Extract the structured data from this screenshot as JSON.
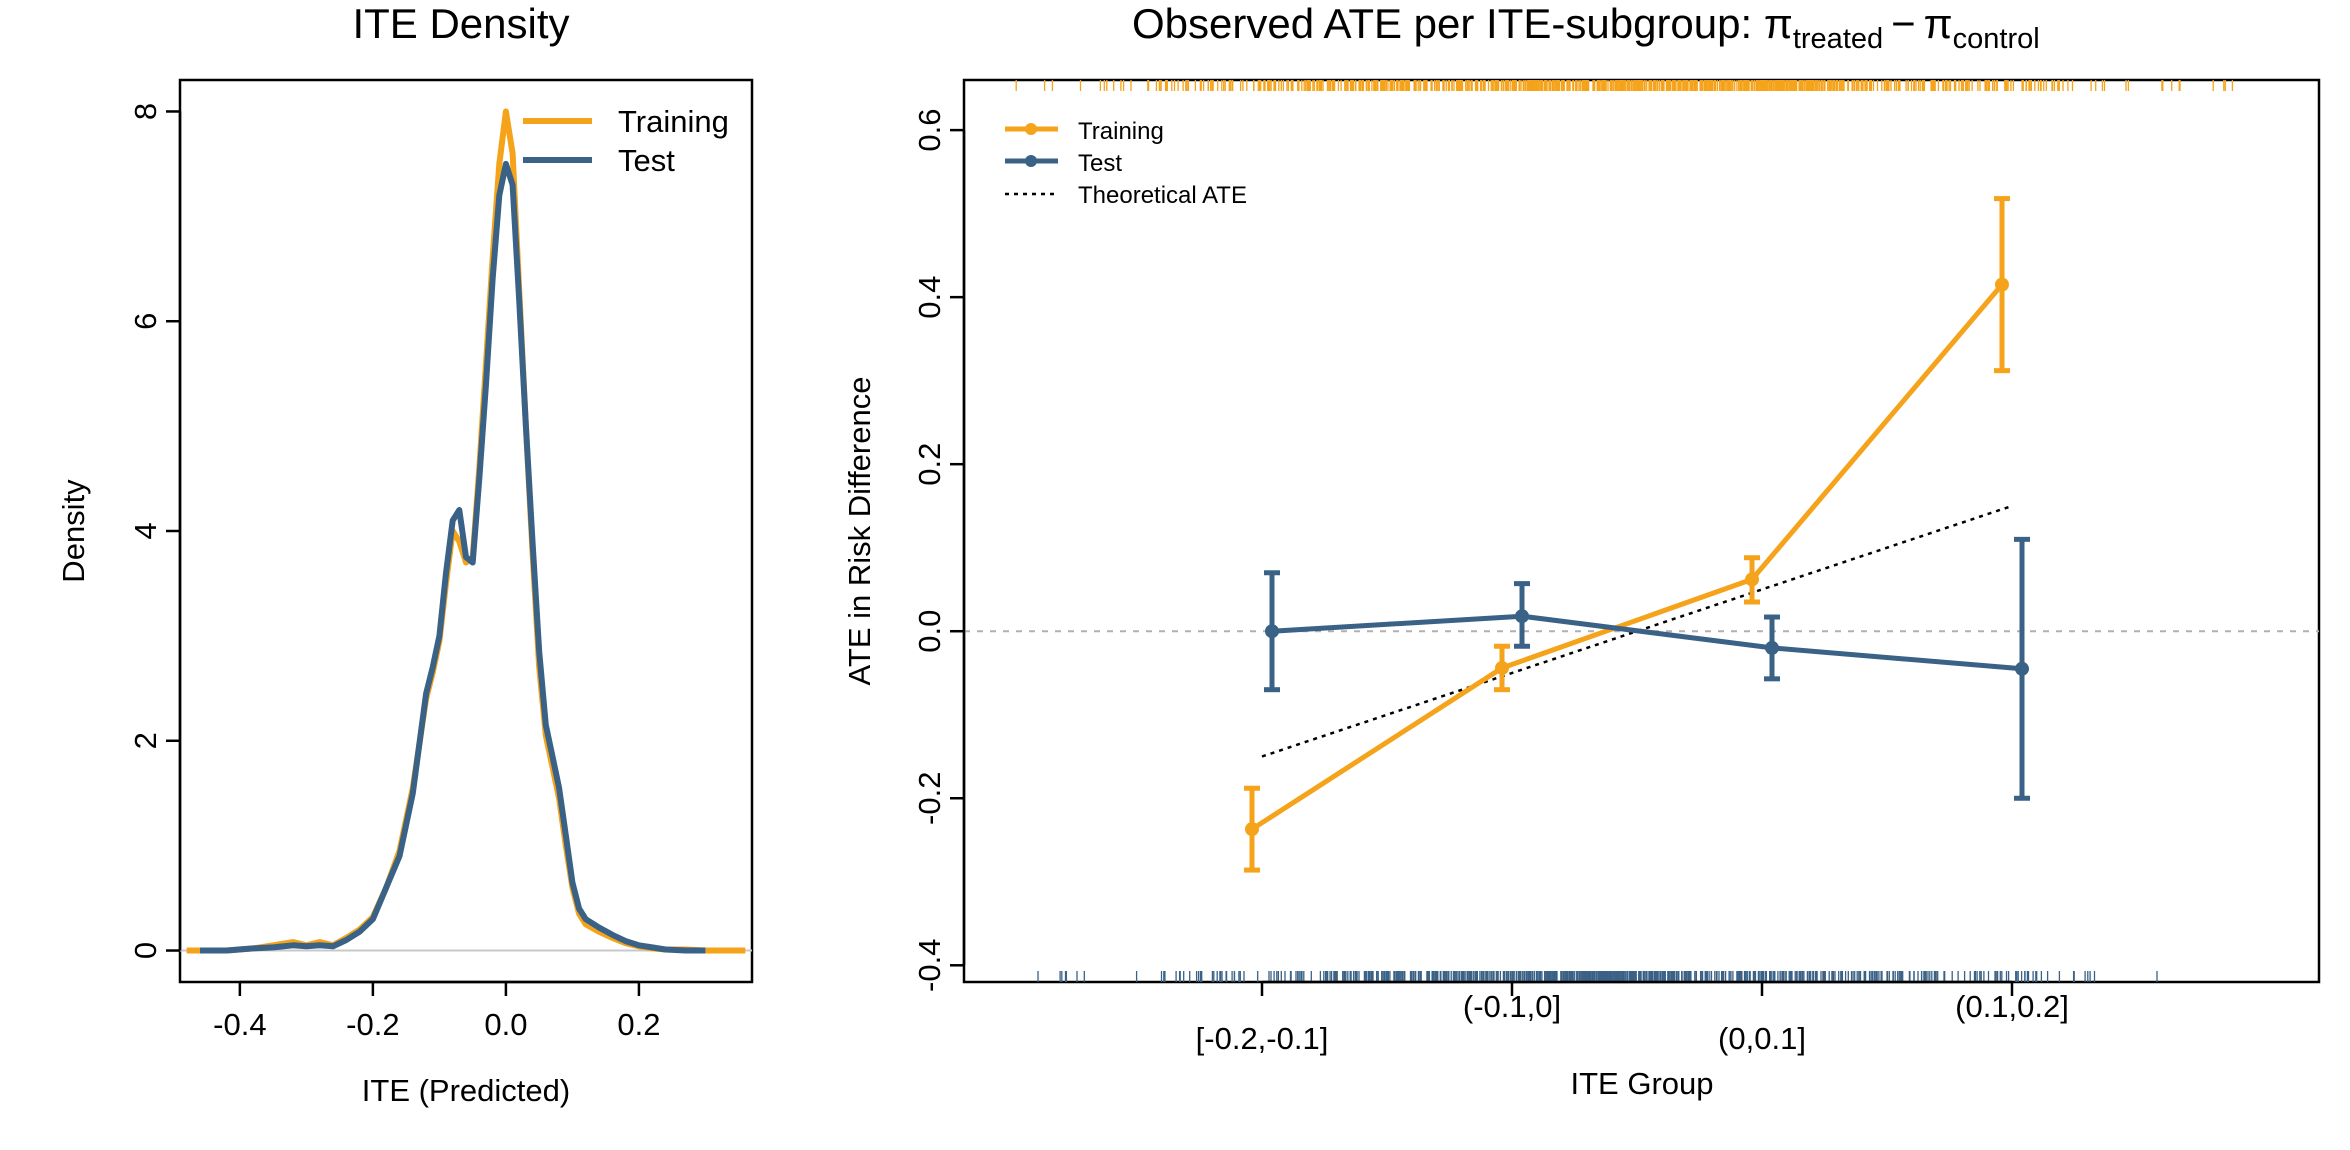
{
  "chart_data": [
    {
      "type": "line",
      "title": "ITE Density",
      "xlabel": "ITE (Predicted)",
      "ylabel": "Density",
      "xlim": [
        -0.49,
        0.37
      ],
      "ylim": [
        -0.3,
        8.3
      ],
      "xticks": [
        -0.4,
        -0.2,
        0.0,
        0.2
      ],
      "xtick_labels": [
        "-0.4",
        "-0.2",
        "0.0",
        "0.2"
      ],
      "yticks": [
        0,
        2,
        4,
        6,
        8
      ],
      "ytick_labels": [
        "0",
        "2",
        "4",
        "6",
        "8"
      ],
      "hline": 0,
      "legend": {
        "placement": "top-right"
      },
      "series": [
        {
          "name": "Training",
          "color": "#F5A31A",
          "x": [
            -0.48,
            -0.42,
            -0.38,
            -0.35,
            -0.32,
            -0.3,
            -0.28,
            -0.26,
            -0.24,
            -0.22,
            -0.2,
            -0.18,
            -0.16,
            -0.14,
            -0.12,
            -0.11,
            -0.1,
            -0.09,
            -0.08,
            -0.07,
            -0.06,
            -0.05,
            -0.04,
            -0.03,
            -0.02,
            -0.01,
            0.0,
            0.01,
            0.02,
            0.03,
            0.04,
            0.05,
            0.06,
            0.07,
            0.08,
            0.09,
            0.1,
            0.11,
            0.12,
            0.14,
            0.16,
            0.18,
            0.2,
            0.22,
            0.24,
            0.27,
            0.3,
            0.33,
            0.36
          ],
          "y": [
            0.0,
            0.0,
            0.02,
            0.05,
            0.08,
            0.05,
            0.08,
            0.05,
            0.12,
            0.2,
            0.32,
            0.6,
            0.95,
            1.55,
            2.4,
            2.65,
            2.95,
            3.5,
            4.0,
            3.9,
            3.7,
            3.75,
            4.6,
            5.6,
            6.6,
            7.5,
            8.0,
            7.6,
            6.3,
            5.0,
            3.8,
            2.7,
            2.05,
            1.75,
            1.45,
            1.0,
            0.6,
            0.35,
            0.25,
            0.18,
            0.12,
            0.07,
            0.04,
            0.02,
            0.01,
            0.01,
            0.0,
            0.0,
            0.0
          ]
        },
        {
          "name": "Test",
          "color": "#3A6186",
          "x": [
            -0.46,
            -0.42,
            -0.38,
            -0.35,
            -0.32,
            -0.3,
            -0.28,
            -0.26,
            -0.24,
            -0.22,
            -0.2,
            -0.18,
            -0.16,
            -0.14,
            -0.12,
            -0.11,
            -0.1,
            -0.09,
            -0.08,
            -0.07,
            -0.06,
            -0.05,
            -0.04,
            -0.03,
            -0.02,
            -0.01,
            0.0,
            0.01,
            0.02,
            0.03,
            0.04,
            0.05,
            0.06,
            0.07,
            0.08,
            0.09,
            0.1,
            0.11,
            0.12,
            0.14,
            0.16,
            0.18,
            0.2,
            0.22,
            0.24,
            0.27,
            0.3
          ],
          "y": [
            0.0,
            0.0,
            0.02,
            0.03,
            0.05,
            0.04,
            0.05,
            0.04,
            0.1,
            0.18,
            0.3,
            0.6,
            0.9,
            1.5,
            2.45,
            2.7,
            3.0,
            3.6,
            4.1,
            4.2,
            3.75,
            3.7,
            4.5,
            5.4,
            6.4,
            7.2,
            7.5,
            7.3,
            6.2,
            5.0,
            3.9,
            2.85,
            2.15,
            1.85,
            1.55,
            1.1,
            0.65,
            0.4,
            0.3,
            0.22,
            0.15,
            0.09,
            0.05,
            0.03,
            0.01,
            0.0,
            0.0
          ]
        }
      ]
    },
    {
      "type": "line",
      "title": "Observed ATE per ITE-subgroup: ",
      "title_math": {
        "pi": "π",
        "treated": "treated",
        "minus": "−",
        "control": "control"
      },
      "xlabel": "ITE Group",
      "ylabel": "ATE in Risk Difference",
      "categories": [
        "[-0.2,-0.1]",
        "(-0.1,0]",
        "(0,0.1]",
        "(0.1,0.2]"
      ],
      "ylim": [
        -0.42,
        0.66
      ],
      "yticks": [
        -0.4,
        -0.2,
        0.0,
        0.2,
        0.4,
        0.6
      ],
      "ytick_labels": [
        "-0.4",
        "-0.2",
        "0.0",
        "0.2",
        "0.4",
        "0.6"
      ],
      "hline": 0,
      "legend": {
        "placement": "top-left"
      },
      "series": [
        {
          "name": "Training",
          "color": "#F5A31A",
          "values": [
            -0.237,
            -0.044,
            0.062,
            0.415
          ],
          "lower": [
            -0.286,
            -0.07,
            0.035,
            0.312
          ],
          "upper": [
            -0.188,
            -0.018,
            0.088,
            0.518
          ]
        },
        {
          "name": "Test",
          "color": "#3A6186",
          "values": [
            0.0,
            0.018,
            -0.02,
            -0.045
          ],
          "lower": [
            -0.07,
            -0.018,
            -0.057,
            -0.2
          ],
          "upper": [
            0.07,
            0.057,
            0.017,
            0.11
          ]
        }
      ],
      "reference": {
        "name": "Theoretical ATE",
        "x": [
          1,
          4
        ],
        "y": [
          -0.15,
          0.15
        ]
      },
      "rug": {
        "top": {
          "series": "Training",
          "color": "#F5A31A"
        },
        "bottom": {
          "series": "Test",
          "color": "#3A6186"
        }
      }
    }
  ]
}
